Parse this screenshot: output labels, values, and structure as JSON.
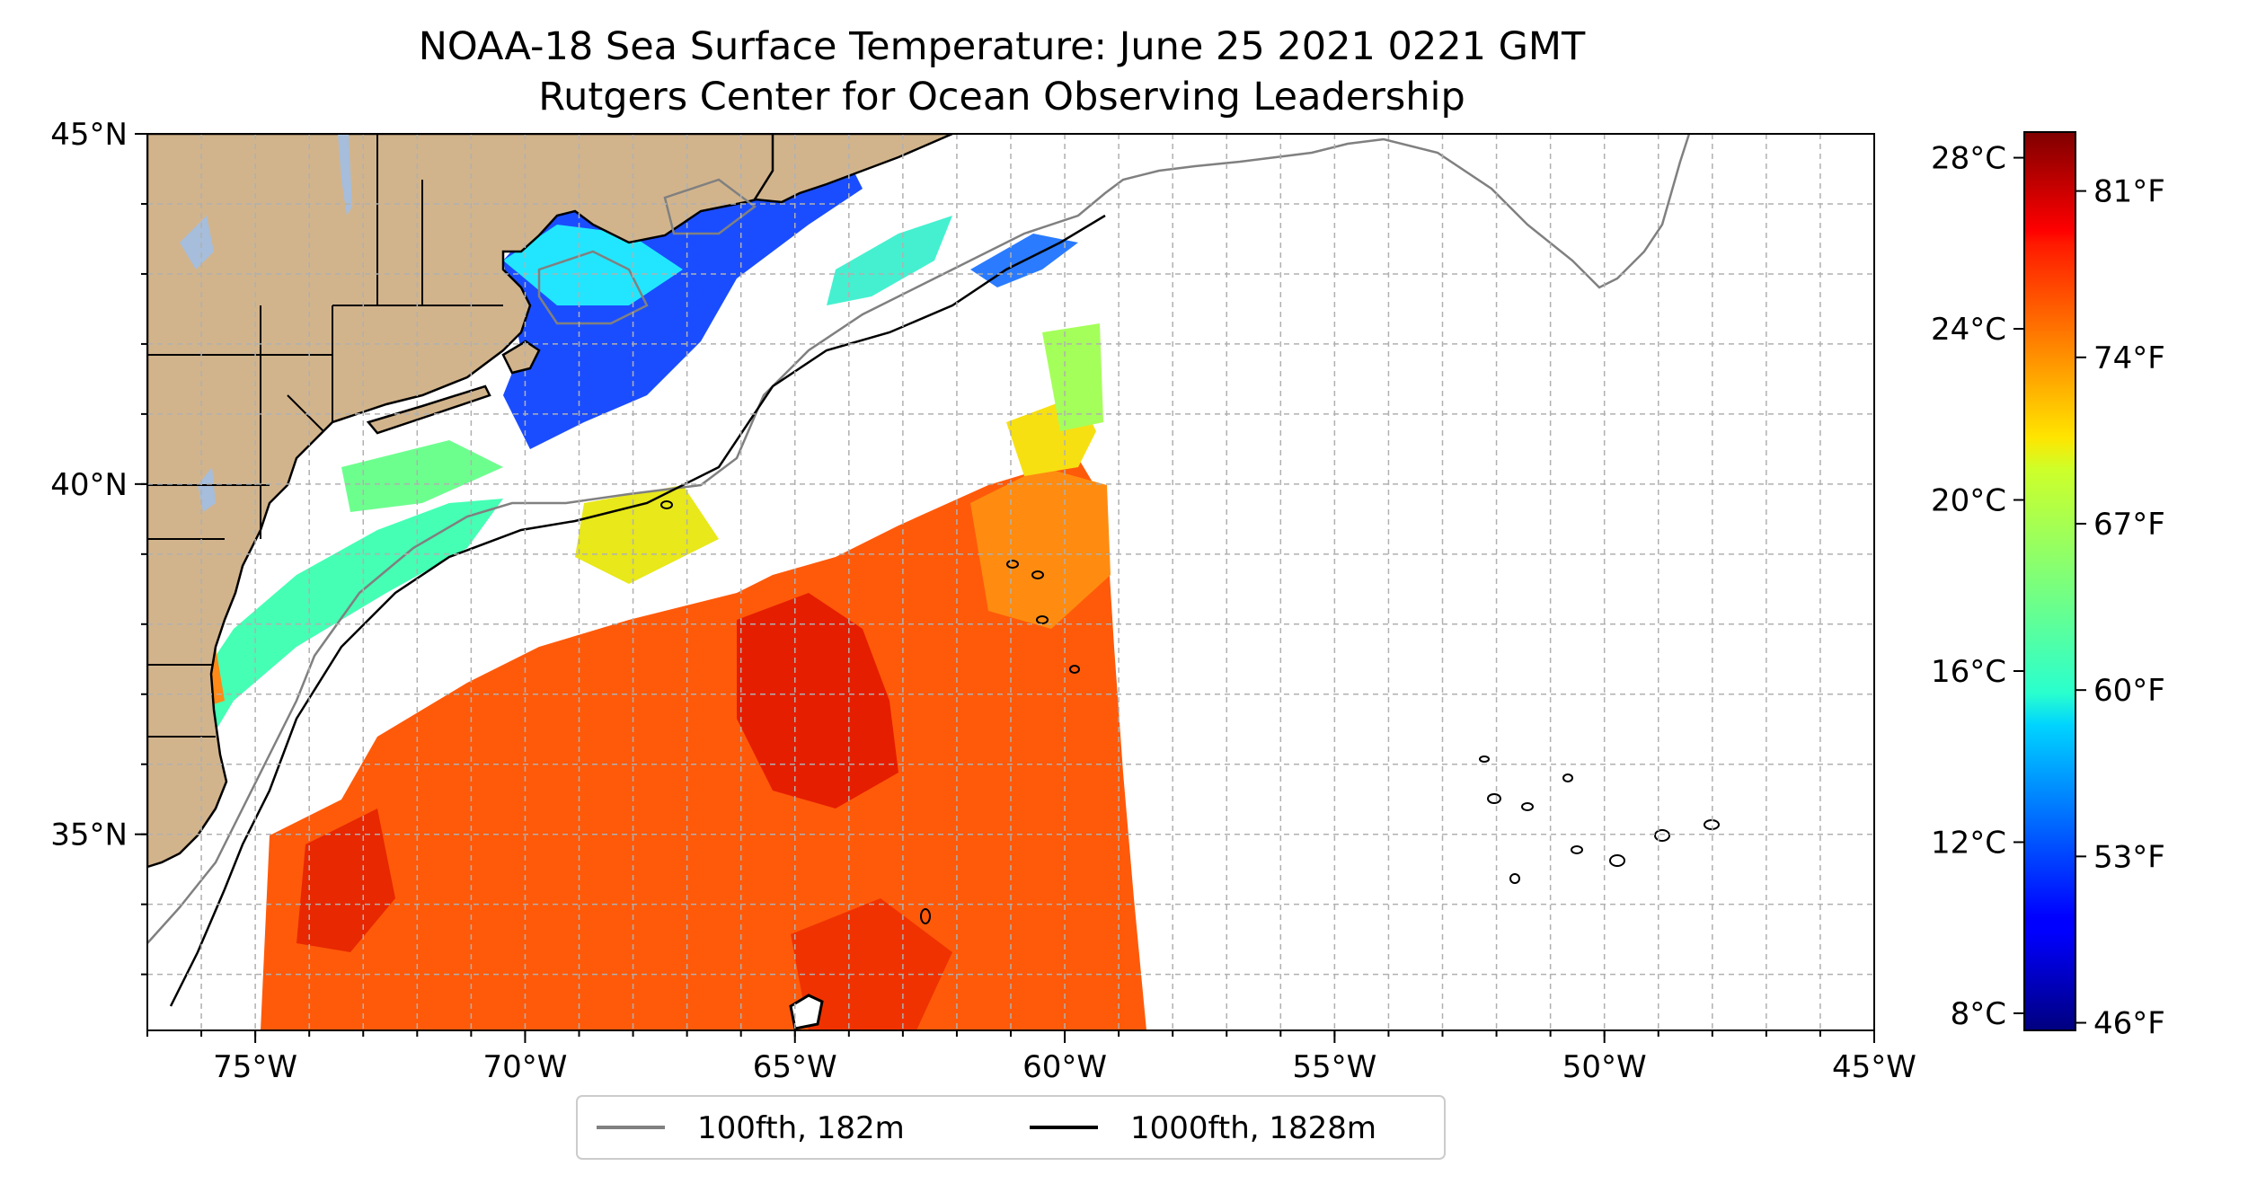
{
  "title": {
    "line1": "NOAA-18 Sea Surface Temperature: June 25 2021 0221 GMT",
    "line2": "Rutgers Center for Ocean Observing Leadership"
  },
  "map": {
    "extent": {
      "lon_min": -77,
      "lon_max": -45,
      "lat_min": 32.2,
      "lat_max": 45
    },
    "lon_ticks": [
      {
        "value": -75,
        "label": "75°W"
      },
      {
        "value": -70,
        "label": "70°W"
      },
      {
        "value": -65,
        "label": "65°W"
      },
      {
        "value": -60,
        "label": "60°W"
      },
      {
        "value": -55,
        "label": "55°W"
      },
      {
        "value": -50,
        "label": "50°W"
      },
      {
        "value": -45,
        "label": "45°W"
      }
    ],
    "lat_ticks": [
      {
        "value": 35,
        "label": "35°N"
      },
      {
        "value": 40,
        "label": "40°N"
      },
      {
        "value": 45,
        "label": "45°N"
      }
    ],
    "gridlines": true,
    "grid_spacing_deg": 1,
    "land_color": "#d2b48c",
    "water_missing_color": "#ffffff"
  },
  "colorbar": {
    "colormap": "jet",
    "celsius_min": 7.6,
    "celsius_max": 28.6,
    "celsius_ticks": [
      {
        "value": 8,
        "label": "8°C"
      },
      {
        "value": 12,
        "label": "12°C"
      },
      {
        "value": 16,
        "label": "16°C"
      },
      {
        "value": 20,
        "label": "20°C"
      },
      {
        "value": 24,
        "label": "24°C"
      },
      {
        "value": 28,
        "label": "28°C"
      }
    ],
    "fahrenheit_ticks": [
      {
        "value": 46,
        "label": "46°F"
      },
      {
        "value": 53,
        "label": "53°F"
      },
      {
        "value": 60,
        "label": "60°F"
      },
      {
        "value": 67,
        "label": "67°F"
      },
      {
        "value": 74,
        "label": "74°F"
      },
      {
        "value": 81,
        "label": "81°F"
      }
    ]
  },
  "legend": {
    "items": [
      {
        "label": "100fth, 182m",
        "color": "#808080"
      },
      {
        "label": "1000fth, 1828m",
        "color": "#000000"
      }
    ]
  }
}
